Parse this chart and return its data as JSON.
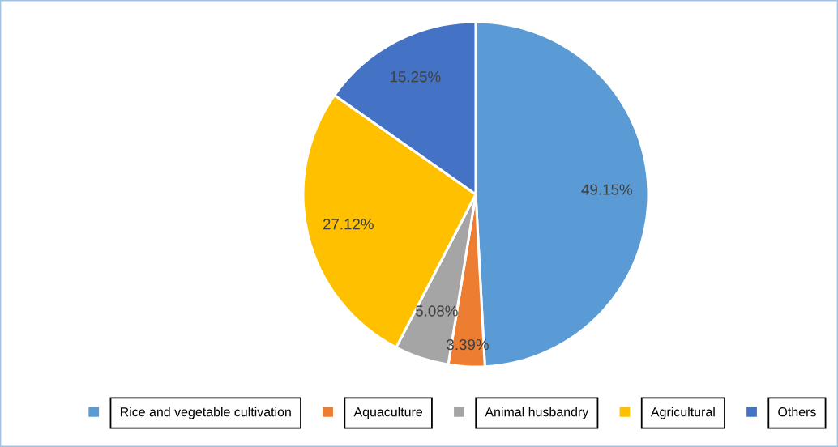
{
  "chart_data": {
    "type": "pie",
    "categories": [
      "Rice and vegetable cultivation",
      "Aquaculture",
      "Animal husbandry",
      "Agricultural",
      "Others"
    ],
    "values": [
      49.15,
      3.39,
      5.08,
      27.12,
      15.25
    ],
    "colors": [
      "#5b9bd5",
      "#ed7d31",
      "#a5a5a5",
      "#ffc000",
      "#4472c4"
    ],
    "value_labels": [
      "49.15%",
      "3.39%",
      "5.08%",
      "27.12%",
      "15.25%"
    ],
    "legend": "bottom"
  }
}
